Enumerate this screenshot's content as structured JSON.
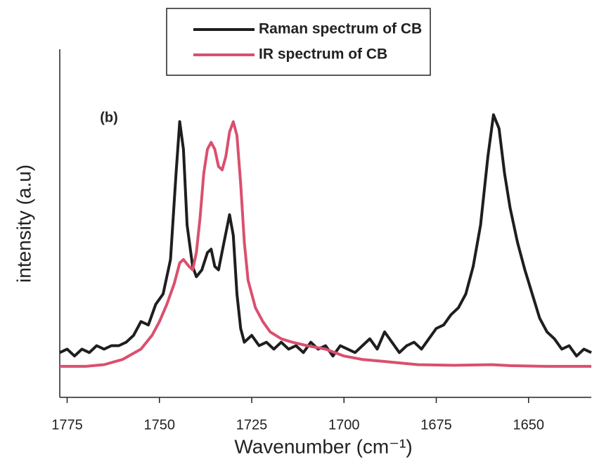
{
  "chart_data": {
    "type": "line",
    "xlabel": "Wavenumber (cm⁻¹)",
    "ylabel": "intensity (a.u)",
    "annotation": "(b)",
    "legend": "top",
    "xlim": [
      1777,
      1633
    ],
    "xticks": [
      1775,
      1750,
      1725,
      1700,
      1675,
      1650
    ],
    "ylim": [
      0,
      1
    ],
    "series": [
      {
        "name": "Raman spectrum of CB",
        "color": "#1e1e1e",
        "x": [
          1777,
          1775,
          1773,
          1771,
          1769,
          1767,
          1765,
          1763,
          1761,
          1759,
          1757,
          1755,
          1753,
          1751,
          1749,
          1747,
          1745.5,
          1744.5,
          1743.5,
          1742.5,
          1741,
          1740,
          1738.5,
          1737,
          1736,
          1735,
          1734,
          1732.5,
          1731,
          1730,
          1729,
          1728,
          1727,
          1725,
          1723,
          1721,
          1719,
          1717,
          1715,
          1713,
          1711,
          1709,
          1707,
          1705,
          1703,
          1701,
          1699,
          1697,
          1695,
          1693,
          1691,
          1689,
          1687,
          1685,
          1683,
          1681,
          1679,
          1677,
          1675,
          1673,
          1671,
          1669,
          1667,
          1665,
          1663,
          1661,
          1659.5,
          1658,
          1656.5,
          1655,
          1653,
          1651,
          1649,
          1647,
          1645,
          1643,
          1641,
          1639,
          1637,
          1635,
          1633
        ],
        "values": [
          0.13,
          0.14,
          0.12,
          0.14,
          0.13,
          0.15,
          0.14,
          0.15,
          0.15,
          0.16,
          0.18,
          0.22,
          0.21,
          0.27,
          0.3,
          0.4,
          0.65,
          0.8,
          0.72,
          0.5,
          0.38,
          0.35,
          0.37,
          0.42,
          0.43,
          0.38,
          0.37,
          0.45,
          0.53,
          0.47,
          0.3,
          0.2,
          0.16,
          0.18,
          0.15,
          0.16,
          0.14,
          0.16,
          0.14,
          0.15,
          0.13,
          0.16,
          0.14,
          0.15,
          0.12,
          0.15,
          0.14,
          0.13,
          0.15,
          0.17,
          0.14,
          0.19,
          0.16,
          0.13,
          0.15,
          0.16,
          0.14,
          0.17,
          0.2,
          0.21,
          0.24,
          0.26,
          0.3,
          0.38,
          0.5,
          0.7,
          0.82,
          0.78,
          0.65,
          0.55,
          0.45,
          0.37,
          0.3,
          0.23,
          0.19,
          0.17,
          0.14,
          0.15,
          0.12,
          0.14,
          0.13
        ]
      },
      {
        "name": "IR spectrum of CB",
        "color": "#d9506e",
        "x": [
          1777,
          1770,
          1765,
          1760,
          1755,
          1752,
          1750,
          1748,
          1746,
          1744.5,
          1743.5,
          1742,
          1741,
          1740,
          1739,
          1738,
          1737,
          1736,
          1735,
          1734,
          1733,
          1732,
          1731,
          1730,
          1729,
          1728,
          1727,
          1726,
          1724,
          1722,
          1720,
          1717,
          1714,
          1710,
          1705,
          1700,
          1695,
          1690,
          1680,
          1670,
          1660,
          1655,
          1645,
          1633
        ],
        "values": [
          0.09,
          0.09,
          0.095,
          0.11,
          0.14,
          0.18,
          0.22,
          0.27,
          0.33,
          0.39,
          0.4,
          0.38,
          0.37,
          0.42,
          0.52,
          0.65,
          0.72,
          0.74,
          0.72,
          0.67,
          0.66,
          0.7,
          0.77,
          0.8,
          0.76,
          0.62,
          0.45,
          0.34,
          0.26,
          0.22,
          0.19,
          0.17,
          0.16,
          0.15,
          0.14,
          0.12,
          0.11,
          0.105,
          0.095,
          0.093,
          0.095,
          0.092,
          0.09,
          0.09
        ]
      }
    ]
  }
}
